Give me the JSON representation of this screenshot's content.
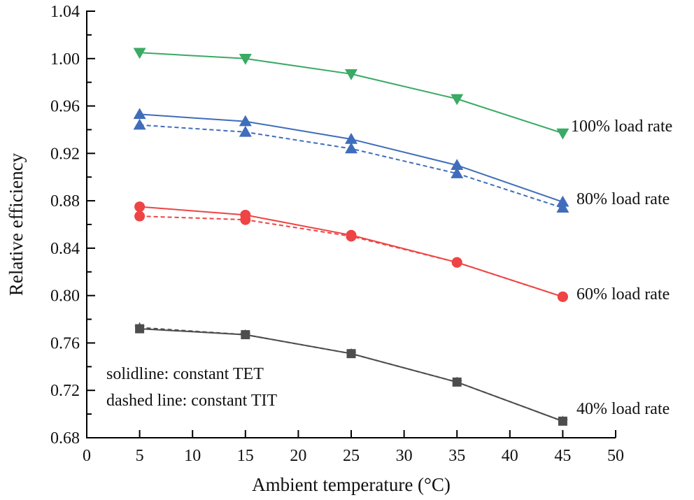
{
  "chart_data": {
    "type": "line",
    "title": "",
    "xlabel": "Ambient temperature (°C)",
    "ylabel": "Relative efficiency",
    "xlim": [
      0,
      50
    ],
    "ylim": [
      0.68,
      1.04
    ],
    "x_ticks": [
      "0",
      "5",
      "10",
      "15",
      "20",
      "25",
      "30",
      "35",
      "40",
      "45",
      "50"
    ],
    "x_tick_values": [
      0,
      5,
      10,
      15,
      20,
      25,
      30,
      35,
      40,
      45,
      50
    ],
    "y_ticks": [
      "0.68",
      "0.72",
      "0.76",
      "0.80",
      "0.84",
      "0.88",
      "0.92",
      "0.96",
      "1.00",
      "1.04"
    ],
    "y_tick_values": [
      0.68,
      0.72,
      0.76,
      0.8,
      0.84,
      0.88,
      0.92,
      0.96,
      1.0,
      1.04
    ],
    "grid": false,
    "x": [
      5,
      15,
      25,
      35,
      45
    ],
    "series": [
      {
        "name": "100% load rate (constant TET)",
        "style": "solid",
        "marker": "triangle-down",
        "color": "#3aaa64",
        "values": [
          1.005,
          1.0,
          0.987,
          0.966,
          0.937
        ]
      },
      {
        "name": "80% load rate (constant TET)",
        "style": "solid",
        "marker": "triangle-up",
        "color": "#3f6dbb",
        "values": [
          0.953,
          0.947,
          0.932,
          0.91,
          0.879
        ]
      },
      {
        "name": "80% load rate (constant TIT)",
        "style": "dashed",
        "marker": "triangle-up",
        "color": "#3f6dbb",
        "values": [
          0.944,
          0.938,
          0.924,
          0.903,
          0.874
        ]
      },
      {
        "name": "60% load rate (constant TET)",
        "style": "solid",
        "marker": "circle",
        "color": "#ee4444",
        "values": [
          0.875,
          0.868,
          0.851,
          0.828,
          0.799
        ]
      },
      {
        "name": "60% load rate (constant TIT)",
        "style": "dashed",
        "marker": "circle",
        "color": "#ee4444",
        "values": [
          0.867,
          0.864,
          0.85,
          0.828,
          0.799
        ]
      },
      {
        "name": "40% load rate (constant TET)",
        "style": "solid",
        "marker": "square",
        "color": "#4d4d4d",
        "values": [
          0.772,
          0.767,
          0.751,
          0.727,
          0.694
        ]
      },
      {
        "name": "40% load rate (constant TIT)",
        "style": "dashed",
        "marker": "star",
        "color": "#4d4d4d",
        "values": [
          0.773,
          0.767,
          0.751,
          0.727,
          0.694
        ]
      }
    ],
    "annotations": {
      "label_100": "100% load rate",
      "label_80": "80% load rate",
      "label_60": "60% load rate",
      "label_40": "40% load rate",
      "note_solid": "solidline: constant TET",
      "note_dashed": "dashed line: constant TIT"
    }
  }
}
